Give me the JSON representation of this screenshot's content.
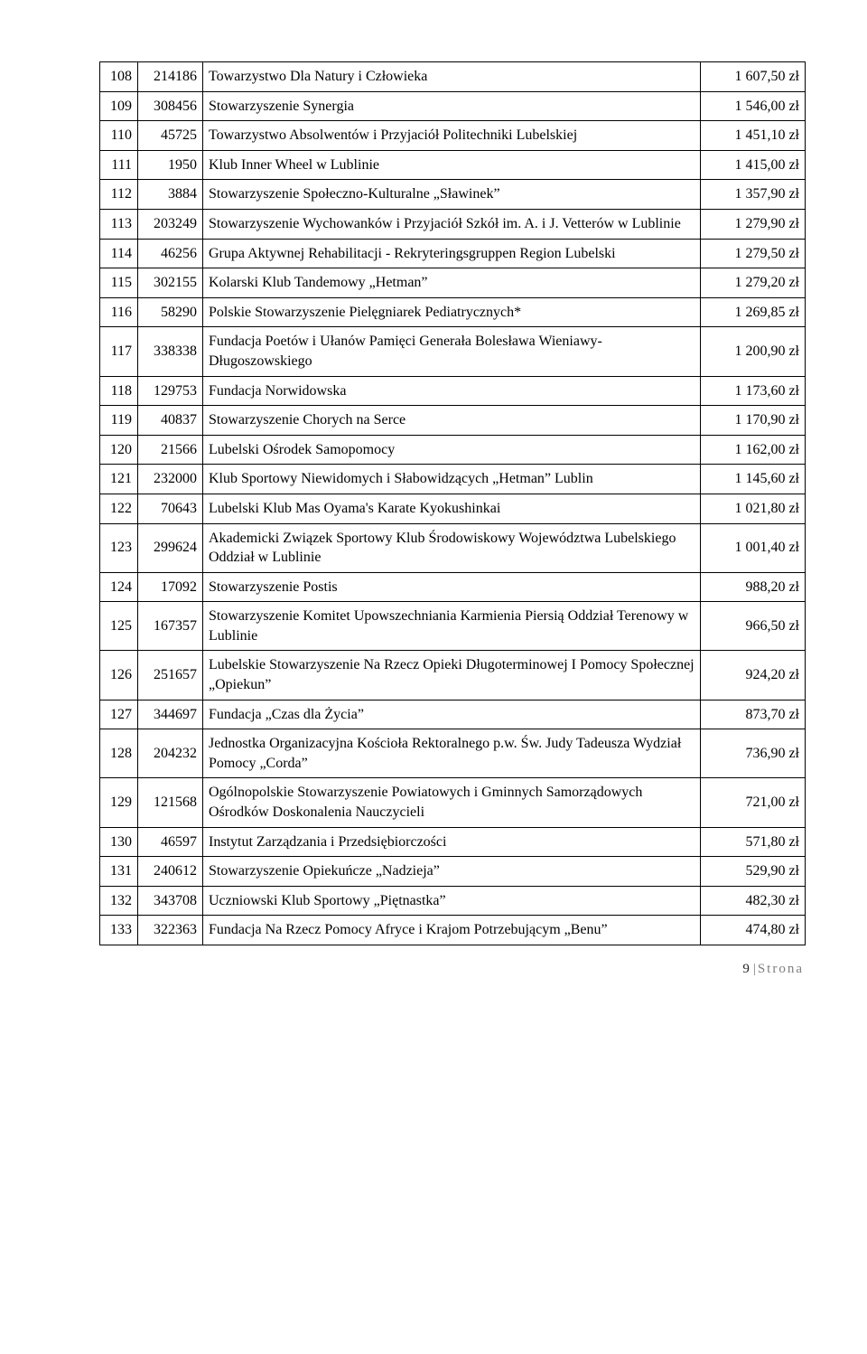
{
  "rows": [
    {
      "n": "108",
      "code": "214186",
      "name": "Towarzystwo Dla Natury i Człowieka",
      "amount": "1 607,50 zł"
    },
    {
      "n": "109",
      "code": "308456",
      "name": "Stowarzyszenie Synergia",
      "amount": "1 546,00 zł"
    },
    {
      "n": "110",
      "code": "45725",
      "name": "Towarzystwo Absolwentów i Przyjaciół Politechniki Lubelskiej",
      "amount": "1 451,10 zł"
    },
    {
      "n": "111",
      "code": "1950",
      "name": "Klub Inner Wheel w Lublinie",
      "amount": "1 415,00 zł"
    },
    {
      "n": "112",
      "code": "3884",
      "name": "Stowarzyszenie Społeczno-Kulturalne „Sławinek”",
      "amount": "1 357,90 zł"
    },
    {
      "n": "113",
      "code": "203249",
      "name": "Stowarzyszenie Wychowanków i Przyjaciół Szkół im. A. i J. Vetterów w Lublinie",
      "amount": "1 279,90 zł"
    },
    {
      "n": "114",
      "code": "46256",
      "name": "Grupa Aktywnej Rehabilitacji - Rekryteringsgruppen Region Lubelski",
      "amount": "1 279,50 zł"
    },
    {
      "n": "115",
      "code": "302155",
      "name": "Kolarski Klub Tandemowy „Hetman”",
      "amount": "1 279,20 zł"
    },
    {
      "n": "116",
      "code": "58290",
      "name": "Polskie Stowarzyszenie Pielęgniarek Pediatrycznych*",
      "amount": "1 269,85 zł"
    },
    {
      "n": "117",
      "code": "338338",
      "name": "Fundacja Poetów i Ułanów Pamięci Generała Bolesława Wieniawy-Długoszowskiego",
      "amount": "1 200,90 zł"
    },
    {
      "n": "118",
      "code": "129753",
      "name": "Fundacja Norwidowska",
      "amount": "1 173,60 zł"
    },
    {
      "n": "119",
      "code": "40837",
      "name": "Stowarzyszenie Chorych na Serce",
      "amount": "1 170,90 zł"
    },
    {
      "n": "120",
      "code": "21566",
      "name": "Lubelski Ośrodek Samopomocy",
      "amount": "1 162,00 zł"
    },
    {
      "n": "121",
      "code": "232000",
      "name": "Klub Sportowy Niewidomych i Słabowidzących „Hetman” Lublin",
      "amount": "1 145,60 zł"
    },
    {
      "n": "122",
      "code": "70643",
      "name": "Lubelski Klub Mas Oyama's Karate Kyokushinkai",
      "amount": "1 021,80 zł"
    },
    {
      "n": "123",
      "code": "299624",
      "name": "Akademicki Związek Sportowy Klub Środowiskowy Województwa Lubelskiego Oddział w Lublinie",
      "amount": "1 001,40 zł"
    },
    {
      "n": "124",
      "code": "17092",
      "name": "Stowarzyszenie Postis",
      "amount": "988,20 zł"
    },
    {
      "n": "125",
      "code": "167357",
      "name": "Stowarzyszenie Komitet Upowszechniania Karmienia Piersią Oddział Terenowy w Lublinie",
      "amount": "966,50 zł"
    },
    {
      "n": "126",
      "code": "251657",
      "name": "Lubelskie Stowarzyszenie Na Rzecz Opieki Długoterminowej I Pomocy Społecznej „Opiekun”",
      "amount": "924,20 zł"
    },
    {
      "n": "127",
      "code": "344697",
      "name": "Fundacja „Czas dla Życia”",
      "amount": "873,70 zł"
    },
    {
      "n": "128",
      "code": "204232",
      "name": "Jednostka Organizacyjna Kościoła Rektoralnego p.w. Św. Judy Tadeusza Wydział Pomocy „Corda”",
      "amount": "736,90 zł"
    },
    {
      "n": "129",
      "code": "121568",
      "name": "Ogólnopolskie Stowarzyszenie Powiatowych i Gminnych Samorządowych Ośrodków Doskonalenia Nauczycieli",
      "amount": "721,00 zł"
    },
    {
      "n": "130",
      "code": "46597",
      "name": "Instytut Zarządzania i Przedsiębiorczości",
      "amount": "571,80 zł"
    },
    {
      "n": "131",
      "code": "240612",
      "name": "Stowarzyszenie Opiekuńcze „Nadzieja”",
      "amount": "529,90 zł"
    },
    {
      "n": "132",
      "code": "343708",
      "name": "Uczniowski Klub Sportowy „Piętnastka”",
      "amount": "482,30 zł"
    },
    {
      "n": "133",
      "code": "322363",
      "name": "Fundacja Na Rzecz Pomocy Afryce i Krajom Potrzebującym „Benu”",
      "amount": "474,80 zł"
    }
  ],
  "footer": {
    "page": "9",
    "sep": "|",
    "word": "Strona"
  }
}
